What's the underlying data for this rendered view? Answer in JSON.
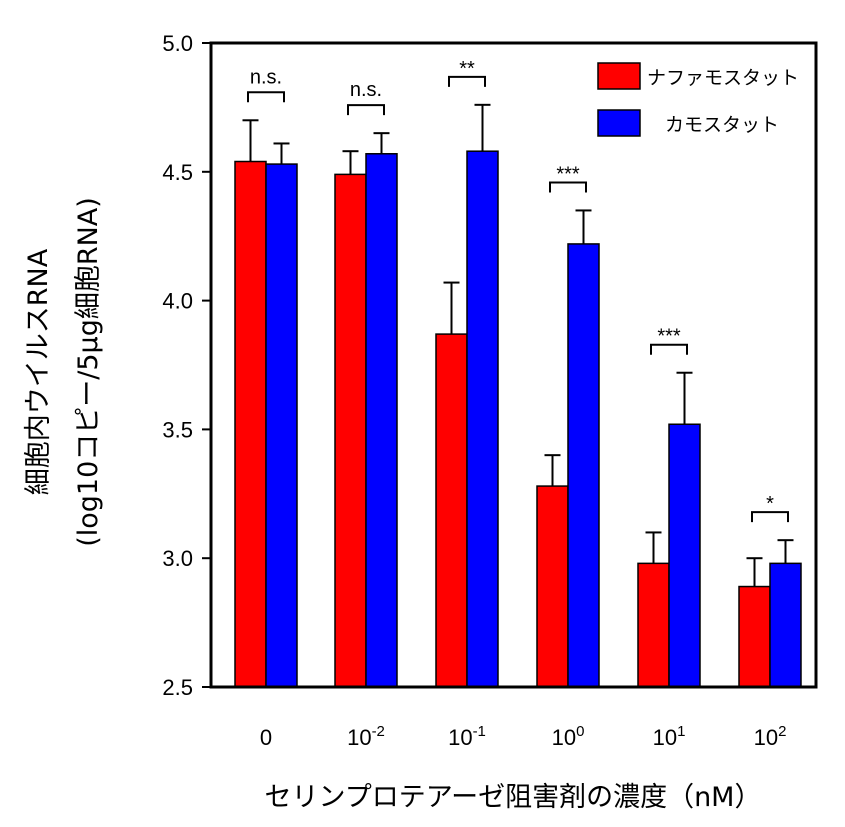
{
  "chart_data": {
    "type": "bar",
    "categories": [
      {
        "base": "0",
        "exp": ""
      },
      {
        "base": "10",
        "exp": "-2"
      },
      {
        "base": "10",
        "exp": "-1"
      },
      {
        "base": "10",
        "exp": "0"
      },
      {
        "base": "10",
        "exp": "1"
      },
      {
        "base": "10",
        "exp": "2"
      }
    ],
    "series": [
      {
        "name": "ナファモスタット",
        "color": "#ff0000",
        "values": [
          4.54,
          4.49,
          3.87,
          3.28,
          2.98,
          2.89
        ],
        "errors": [
          0.16,
          0.09,
          0.2,
          0.12,
          0.12,
          0.11
        ]
      },
      {
        "name": "カモスタット",
        "color": "#0000ff",
        "values": [
          4.53,
          4.57,
          4.58,
          4.22,
          3.52,
          2.98
        ],
        "errors": [
          0.08,
          0.08,
          0.18,
          0.13,
          0.2,
          0.09
        ]
      }
    ],
    "significance": [
      "n.s.",
      "n.s.",
      "**",
      "***",
      "***",
      "*"
    ],
    "ylabel_line1": "細胞内ウイルスRNA",
    "ylabel_line2": "(log10コピー/5µg細胞RNA)",
    "xlabel": "セリンプロテアーゼ阻害剤の濃度（nM）",
    "ylim": [
      2.5,
      5.0
    ],
    "yticks": [
      "2.5",
      "3.0",
      "3.5",
      "4.0",
      "4.5",
      "5.0"
    ],
    "legend_position": "top-right",
    "grid": false
  }
}
